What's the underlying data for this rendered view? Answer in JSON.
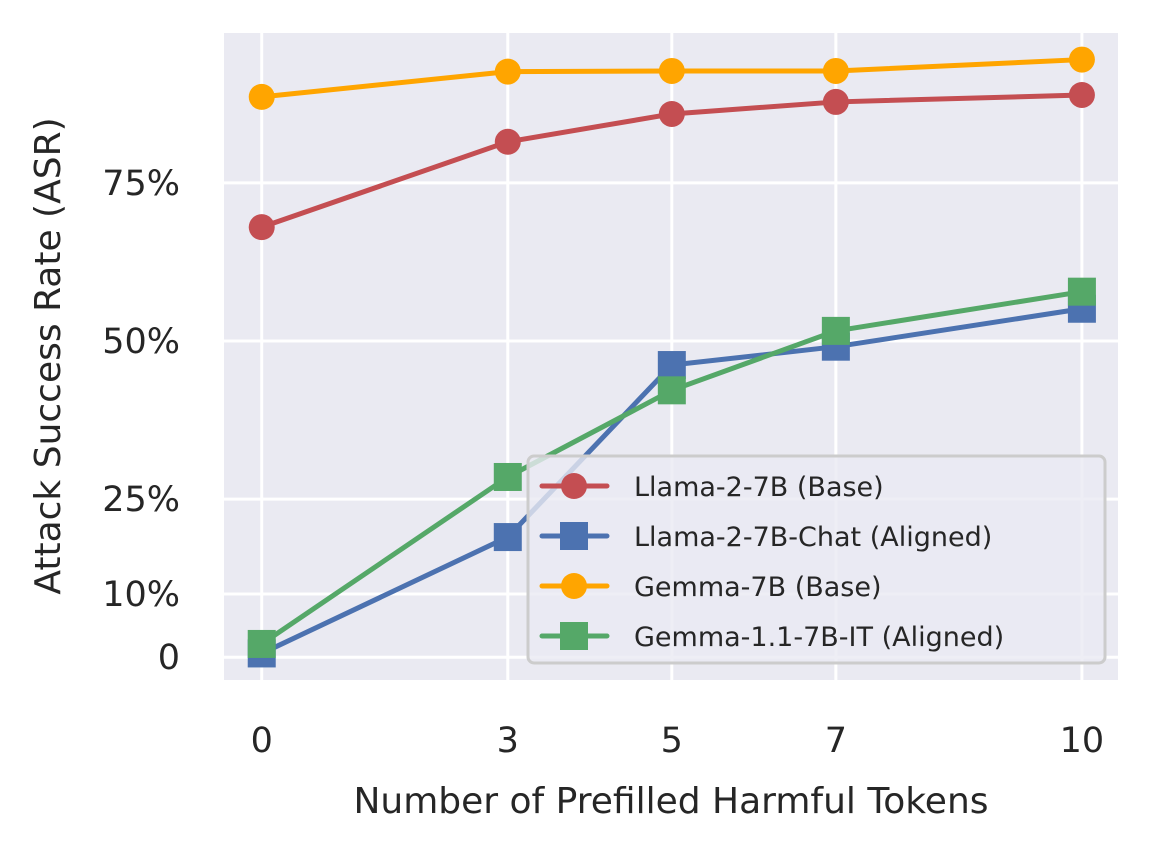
{
  "chart_data": {
    "type": "line",
    "title": "",
    "xlabel": "Number of Prefilled Harmful Tokens",
    "ylabel": "Attack Success Rate (ASR)",
    "x": [
      0,
      3,
      5,
      7,
      10
    ],
    "x_tick_labels": [
      "0",
      "3",
      "5",
      "7",
      "10"
    ],
    "y_ticks": [
      0,
      10,
      25,
      50,
      75
    ],
    "y_tick_labels": [
      "0",
      "10%",
      "25%",
      "50%",
      "75%"
    ],
    "xlim": [
      -0.46,
      10.44
    ],
    "ylim": [
      -3.6,
      98.7
    ],
    "grid": true,
    "legend_position": "lower-right",
    "series": [
      {
        "name": "Llama-2-7B (Base)",
        "marker": "circle",
        "color": "#C44E52",
        "values": [
          68.0,
          81.5,
          85.9,
          87.8,
          88.9
        ]
      },
      {
        "name": "Llama-2-7B-Chat (Aligned)",
        "marker": "square",
        "color": "#4C72B0",
        "values": [
          0.6,
          19.0,
          46.2,
          49.1,
          55.1
        ]
      },
      {
        "name": "Gemma-7B (Base)",
        "marker": "circle",
        "color": "#FFA500",
        "values": [
          88.6,
          92.6,
          92.7,
          92.7,
          94.5
        ]
      },
      {
        "name": "Gemma-1.1-7B-IT (Aligned)",
        "marker": "square",
        "color": "#55A868",
        "values": [
          2.1,
          28.5,
          42.2,
          51.6,
          57.8
        ]
      }
    ]
  }
}
